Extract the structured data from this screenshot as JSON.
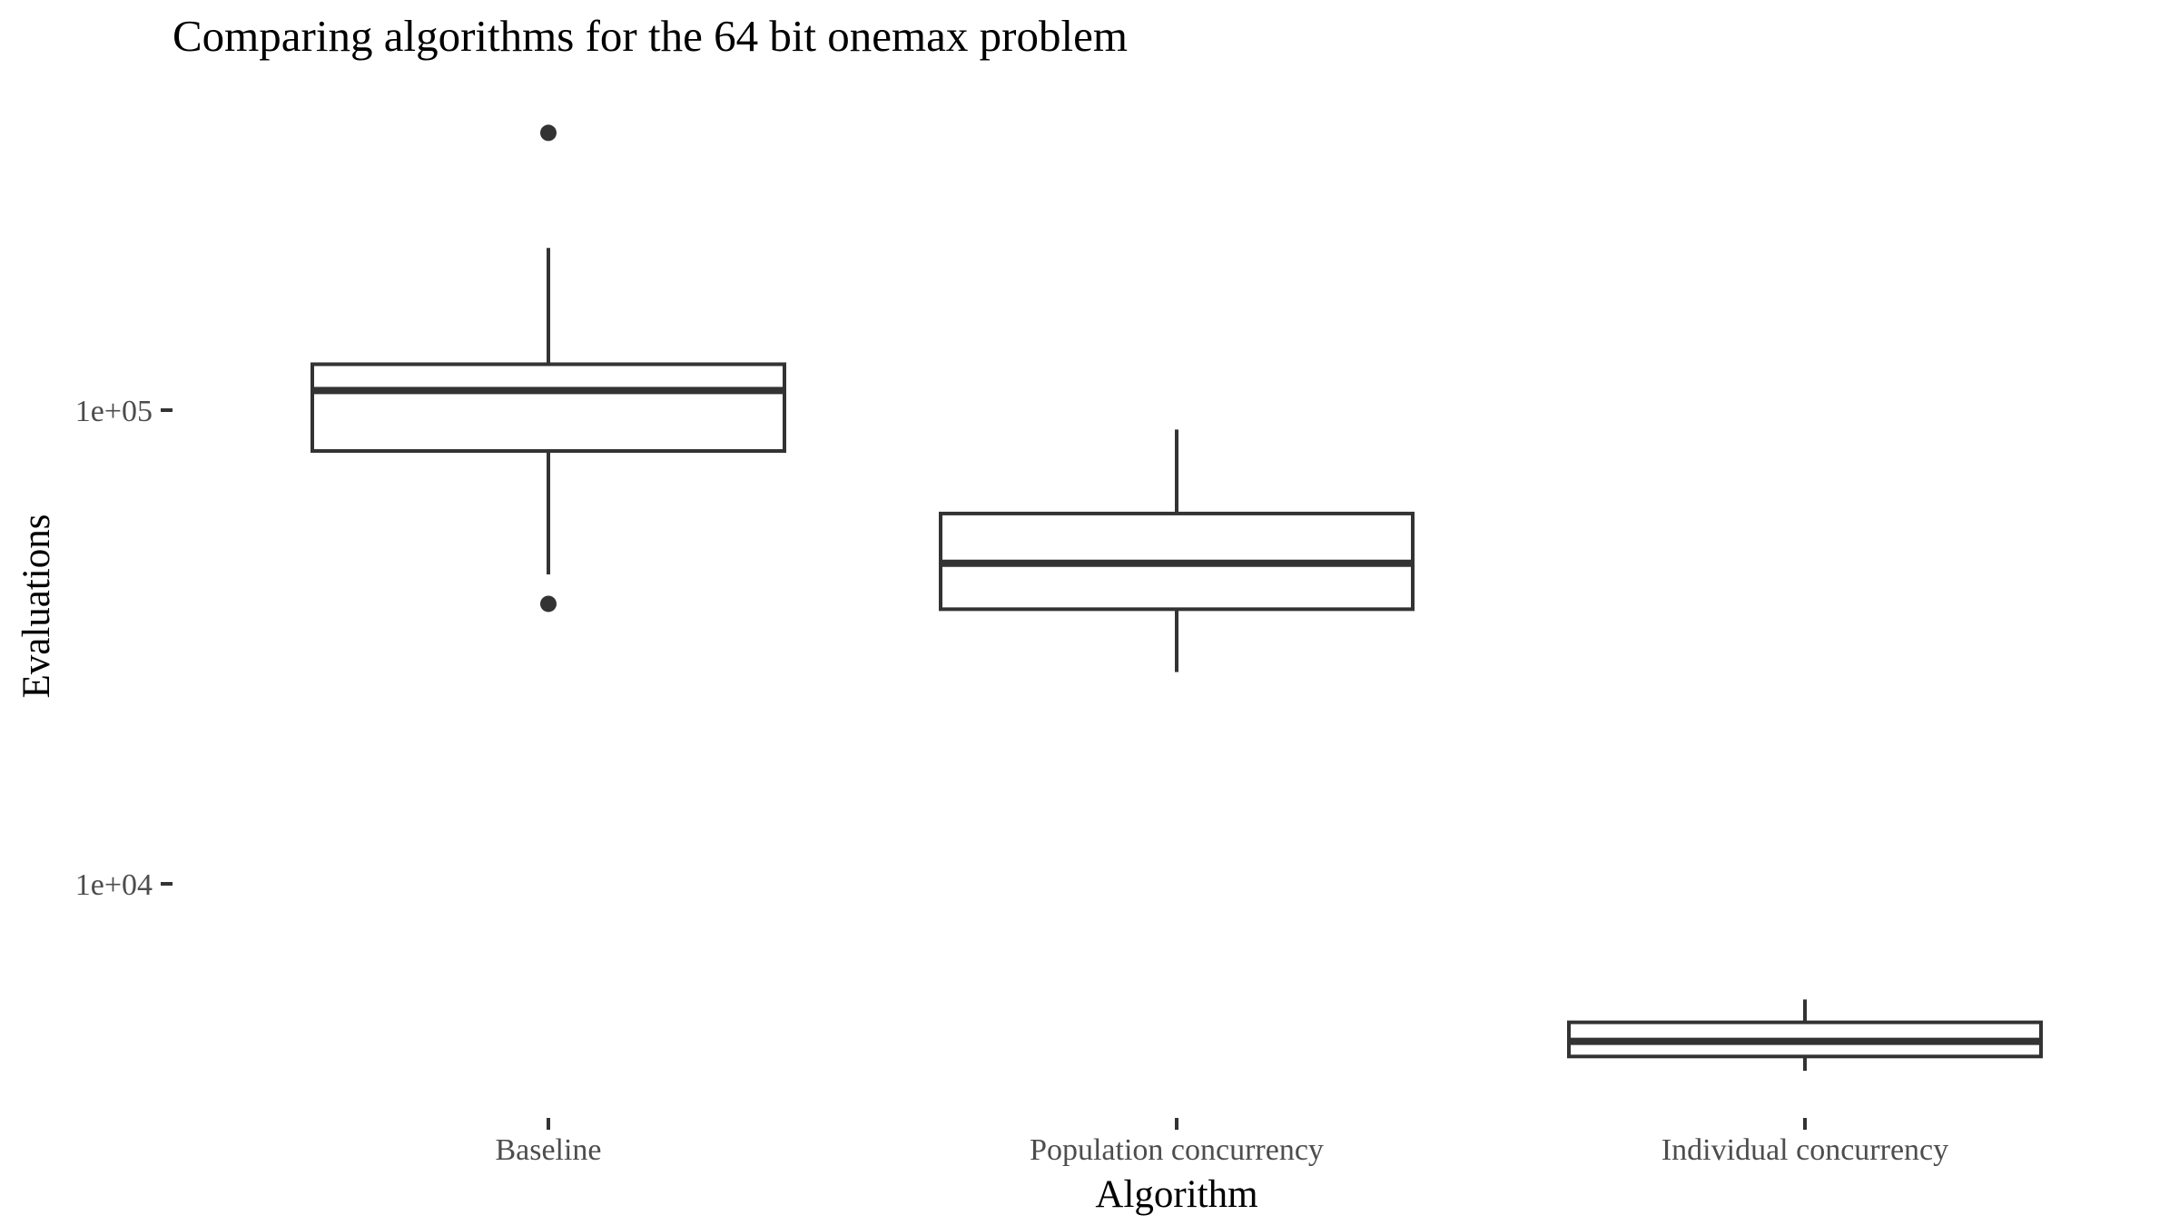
{
  "chart_data": {
    "type": "boxplot",
    "title": "Comparing algorithms for the 64 bit onemax problem",
    "xlabel": "Algorithm",
    "ylabel": "Evaluations",
    "y_scale": "log10",
    "ylim": [
      3500,
      420000
    ],
    "y_ticks": [
      {
        "value": 10000,
        "label": "1e+04"
      },
      {
        "value": 100000,
        "label": "1e+05"
      }
    ],
    "grid": false,
    "legend": "none",
    "categories": [
      "Baseline",
      "Population concurrency",
      "Individual concurrency"
    ],
    "boxes": [
      {
        "category": "Baseline",
        "whisker_low": 45000,
        "q1": 82000,
        "median": 110000,
        "q3": 125000,
        "whisker_high": 220000,
        "outliers": [
          39000,
          385000
        ]
      },
      {
        "category": "Population concurrency",
        "whisker_low": 28000,
        "q1": 38000,
        "median": 47500,
        "q3": 60500,
        "whisker_high": 91000,
        "outliers": []
      },
      {
        "category": "Individual concurrency",
        "whisker_low": 4030,
        "q1": 4320,
        "median": 4650,
        "q3": 5100,
        "whisker_high": 5700,
        "outliers": []
      }
    ]
  }
}
